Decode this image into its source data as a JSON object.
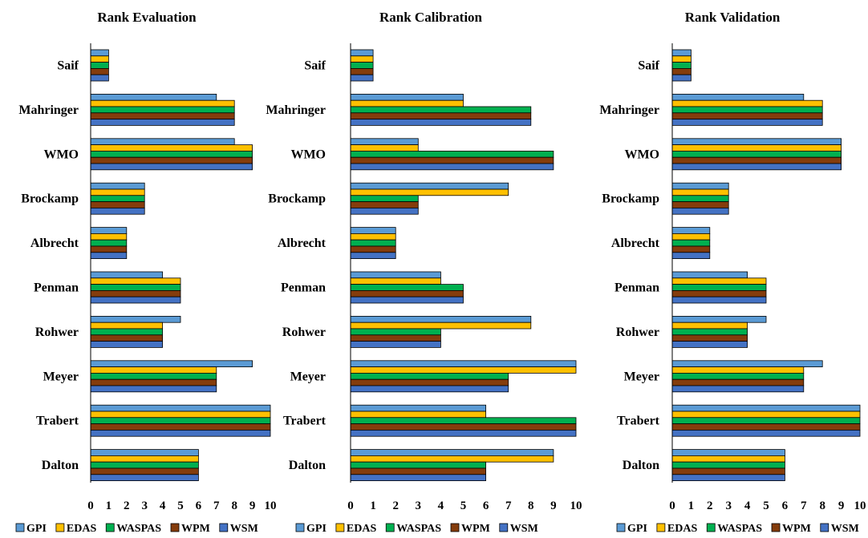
{
  "chart_data": [
    {
      "type": "bar",
      "orientation": "horizontal",
      "title": "Rank Evaluation",
      "categories": [
        "Saif",
        "Mahringer",
        "WMO",
        "Brockamp",
        "Albrecht",
        "Penman",
        "Rohwer",
        "Meyer",
        "Trabert",
        "Dalton"
      ],
      "series": [
        {
          "name": "GPI",
          "values": [
            1,
            7,
            8,
            3,
            2,
            4,
            5,
            9,
            10,
            6
          ]
        },
        {
          "name": "EDAS",
          "values": [
            1,
            8,
            9,
            3,
            2,
            5,
            4,
            7,
            10,
            6
          ]
        },
        {
          "name": "WASPAS",
          "values": [
            1,
            8,
            9,
            3,
            2,
            5,
            4,
            7,
            10,
            6
          ]
        },
        {
          "name": "WPM",
          "values": [
            1,
            8,
            9,
            3,
            2,
            5,
            4,
            7,
            10,
            6
          ]
        },
        {
          "name": "WSM",
          "values": [
            1,
            8,
            9,
            3,
            2,
            5,
            4,
            7,
            10,
            6
          ]
        }
      ],
      "xlim": [
        0,
        10
      ],
      "xticks": [
        "0",
        "1",
        "2",
        "3",
        "4",
        "5",
        "6",
        "7",
        "8",
        "9",
        "10"
      ],
      "grid": false,
      "legend": "bottom"
    },
    {
      "type": "bar",
      "orientation": "horizontal",
      "title": "Rank Calibration",
      "categories": [
        "Saif",
        "Mahringer",
        "WMO",
        "Brockamp",
        "Albrecht",
        "Penman",
        "Rohwer",
        "Meyer",
        "Trabert",
        "Dalton"
      ],
      "series": [
        {
          "name": "GPI",
          "values": [
            1,
            5,
            3,
            7,
            2,
            4,
            8,
            10,
            6,
            9
          ]
        },
        {
          "name": "EDAS",
          "values": [
            1,
            5,
            3,
            7,
            2,
            4,
            8,
            10,
            6,
            9
          ]
        },
        {
          "name": "WASPAS",
          "values": [
            1,
            8,
            9,
            3,
            2,
            5,
            4,
            7,
            10,
            6
          ]
        },
        {
          "name": "WPM",
          "values": [
            1,
            8,
            9,
            3,
            2,
            5,
            4,
            7,
            10,
            6
          ]
        },
        {
          "name": "WSM",
          "values": [
            1,
            8,
            9,
            3,
            2,
            5,
            4,
            7,
            10,
            6
          ]
        }
      ],
      "xlim": [
        0,
        10
      ],
      "xticks": [
        "0",
        "1",
        "2",
        "3",
        "4",
        "5",
        "6",
        "7",
        "8",
        "9",
        "10"
      ],
      "grid": false,
      "legend": "bottom"
    },
    {
      "type": "bar",
      "orientation": "horizontal",
      "title": "Rank Validation",
      "categories": [
        "Saif",
        "Mahringer",
        "WMO",
        "Brockamp",
        "Albrecht",
        "Penman",
        "Rohwer",
        "Meyer",
        "Trabert",
        "Dalton"
      ],
      "series": [
        {
          "name": "GPI",
          "values": [
            1,
            7,
            9,
            3,
            2,
            4,
            5,
            8,
            10,
            6
          ]
        },
        {
          "name": "EDAS",
          "values": [
            1,
            8,
            9,
            3,
            2,
            5,
            4,
            7,
            10,
            6
          ]
        },
        {
          "name": "WASPAS",
          "values": [
            1,
            8,
            9,
            3,
            2,
            5,
            4,
            7,
            10,
            6
          ]
        },
        {
          "name": "WPM",
          "values": [
            1,
            8,
            9,
            3,
            2,
            5,
            4,
            7,
            10,
            6
          ]
        },
        {
          "name": "WSM",
          "values": [
            1,
            8,
            9,
            3,
            2,
            5,
            4,
            7,
            10,
            6
          ]
        }
      ],
      "xlim": [
        0,
        10
      ],
      "xticks": [
        "0",
        "1",
        "2",
        "3",
        "4",
        "5",
        "6",
        "7",
        "8",
        "9",
        "10"
      ],
      "grid": false,
      "legend": "bottom"
    }
  ],
  "colors": {
    "GPI": "#5b9bd5",
    "EDAS": "#ffc000",
    "WASPAS": "#00b050",
    "WPM": "#843c0c",
    "WSM": "#4472c4",
    "bar_outline": "#000000"
  }
}
